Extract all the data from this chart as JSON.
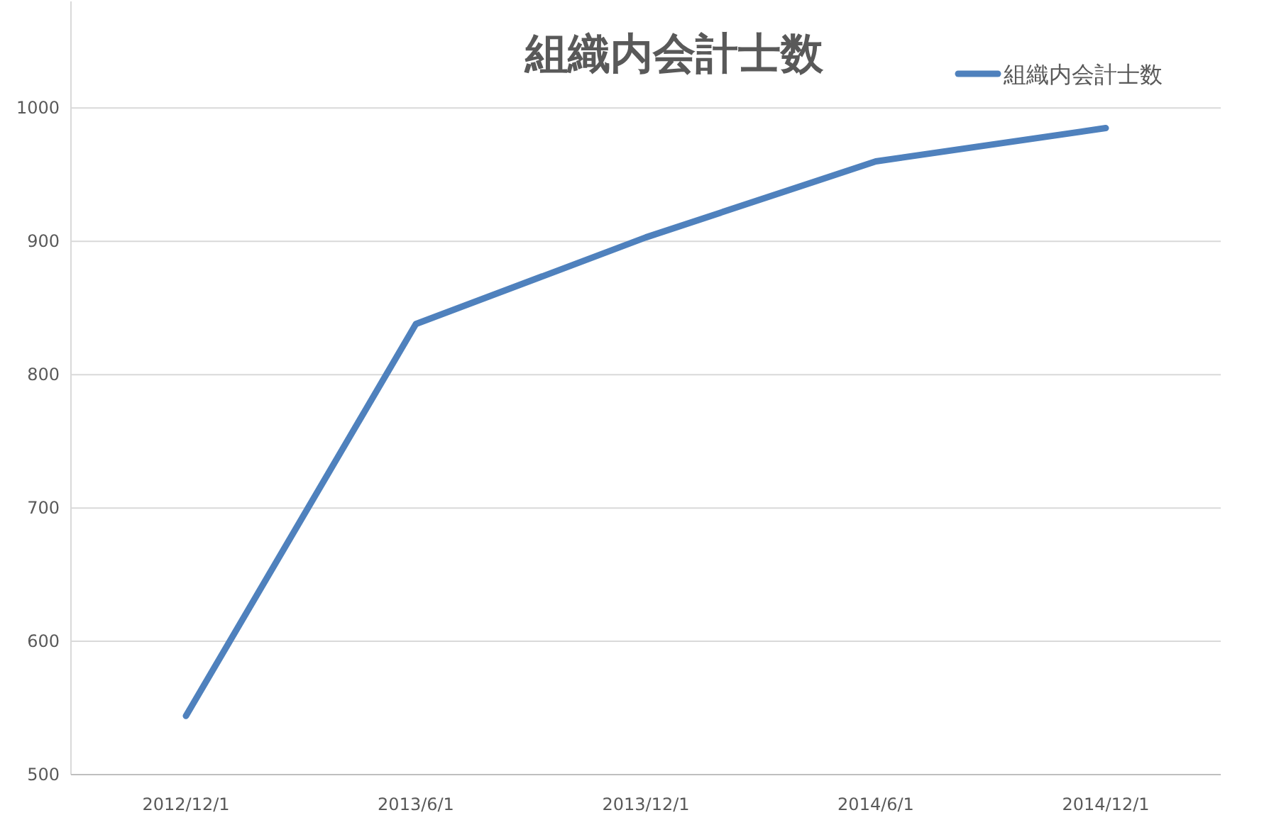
{
  "chart_data": {
    "type": "line",
    "title": "組織内会計士数",
    "categories": [
      "2012/12/1",
      "2013/6/1",
      "2013/12/1",
      "2014/6/1",
      "2014/12/1"
    ],
    "series": [
      {
        "name": "組織内会計士数",
        "color": "#4f81bd",
        "values": [
          544,
          838,
          903,
          960,
          985
        ]
      }
    ],
    "ylim": [
      500,
      1080
    ],
    "yticks": [
      500,
      600,
      700,
      800,
      900,
      1000
    ],
    "grid": "y",
    "legend": "top right",
    "marker": "none",
    "line_style": "solid"
  }
}
